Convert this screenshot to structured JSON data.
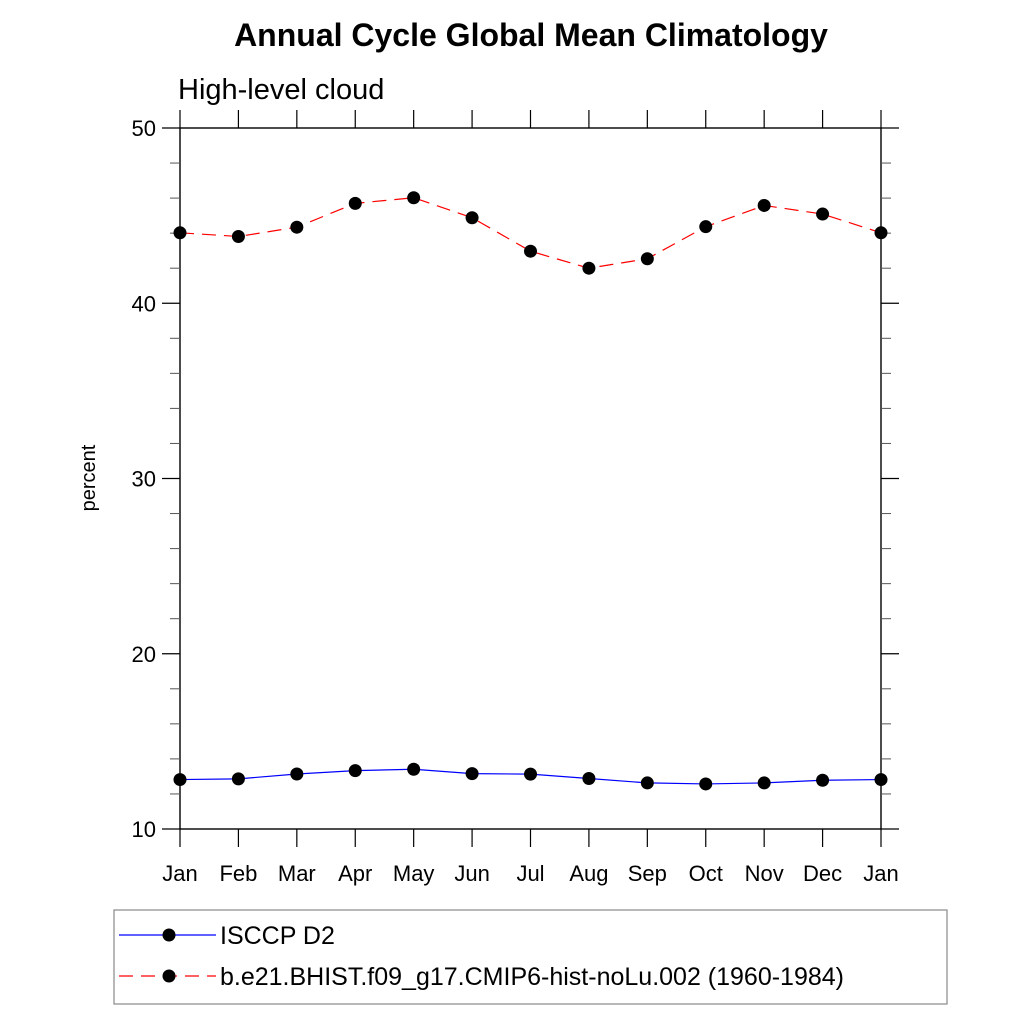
{
  "chart_data": {
    "type": "line",
    "title": "Annual Cycle Global Mean Climatology",
    "subtitle": "High-level cloud",
    "xlabel": "",
    "ylabel": "percent",
    "categories": [
      "Jan",
      "Feb",
      "Mar",
      "Apr",
      "May",
      "Jun",
      "Jul",
      "Aug",
      "Sep",
      "Oct",
      "Nov",
      "Dec",
      "Jan"
    ],
    "ylim": [
      10,
      50
    ],
    "yticks": [
      10,
      20,
      30,
      40,
      50
    ],
    "yminor_step": 2,
    "grid": false,
    "legend_position": "bottom",
    "series": [
      {
        "name": "ISCCP D2",
        "color": "#0000ff",
        "line_style": "solid",
        "marker": "filled-circle",
        "marker_color": "#000000",
        "values": [
          12.82,
          12.86,
          13.14,
          13.33,
          13.41,
          13.16,
          13.13,
          12.88,
          12.63,
          12.57,
          12.63,
          12.78,
          12.82
        ]
      },
      {
        "name": "b.e21.BHIST.f09_g17.CMIP6-hist-noLu.002 (1960-1984)",
        "color": "#ff0000",
        "line_style": "dashed",
        "marker": "filled-circle",
        "marker_color": "#000000",
        "values": [
          44.02,
          43.81,
          44.34,
          45.7,
          46.02,
          44.88,
          42.97,
          42.0,
          42.54,
          44.37,
          45.58,
          45.09,
          44.02
        ]
      }
    ]
  }
}
